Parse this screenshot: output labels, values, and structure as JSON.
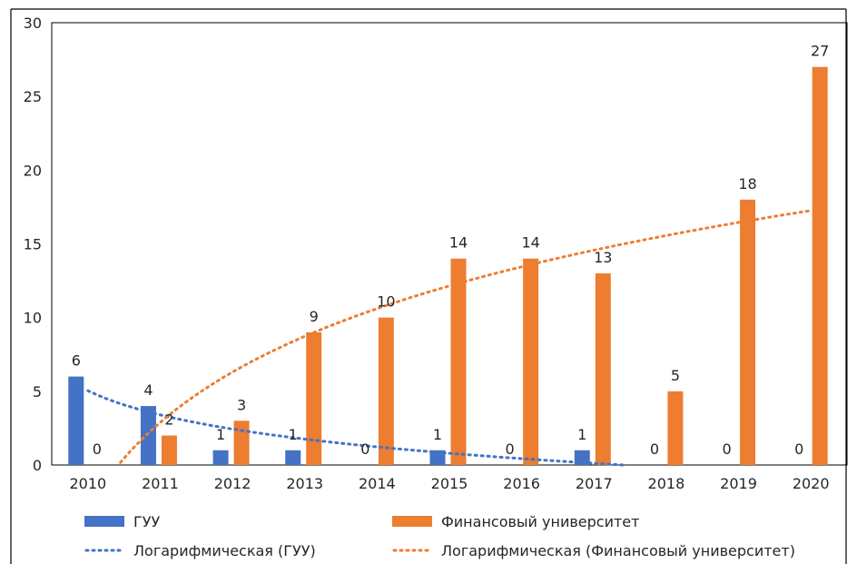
{
  "chart_data": {
    "type": "bar",
    "categories": [
      "2010",
      "2011",
      "2012",
      "2013",
      "2014",
      "2015",
      "2016",
      "2017",
      "2018",
      "2019",
      "2020"
    ],
    "series": [
      {
        "name": "ГУУ",
        "values": [
          6,
          4,
          1,
          1,
          0,
          1,
          0,
          1,
          0,
          0,
          0
        ],
        "color": "#4472C4",
        "data_labels": [
          "6",
          "4",
          "1",
          "1",
          "0",
          "1",
          "0",
          "1",
          "0",
          "0",
          "0"
        ]
      },
      {
        "name": "Финансовый университет",
        "values": [
          0,
          2,
          3,
          9,
          10,
          14,
          14,
          13,
          5,
          18,
          27
        ],
        "color": "#ED7D31",
        "data_labels": [
          "0",
          "2",
          "3",
          "9",
          "10",
          "14",
          "14",
          "13",
          "5",
          "18",
          "27"
        ]
      }
    ],
    "trendlines": [
      {
        "name": "Логарифмическая (ГУУ)",
        "type": "logarithmic",
        "series": "ГУУ",
        "color": "#4472C4"
      },
      {
        "name": "Логарифмическая (Финансовый университет)",
        "type": "logarithmic",
        "series": "Финансовый университет",
        "color": "#ED7D31"
      }
    ],
    "ylim": [
      0,
      30
    ],
    "y_ticks": [
      "0",
      "5",
      "10",
      "15",
      "20",
      "25",
      "30"
    ],
    "grid": false,
    "legend_position": "bottom"
  }
}
